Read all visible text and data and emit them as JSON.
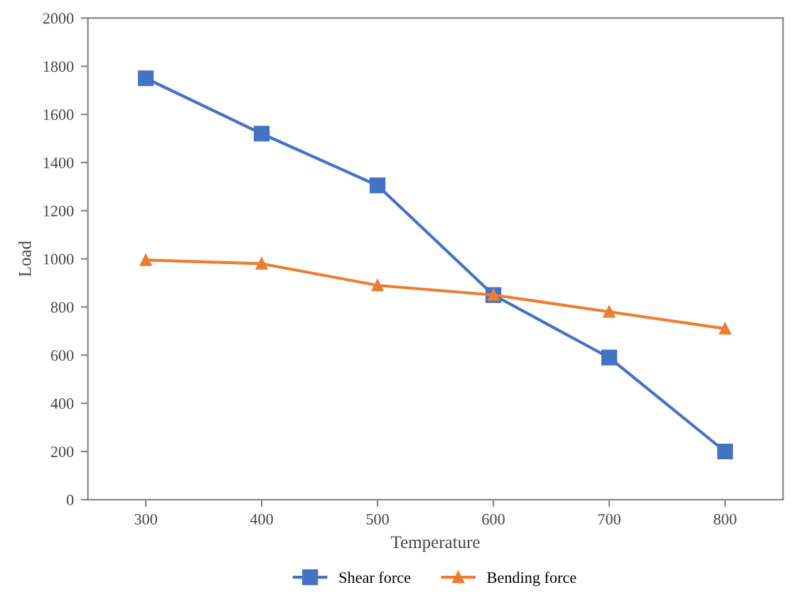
{
  "chart_data": {
    "type": "line",
    "xlabel": "Temperature",
    "ylabel": "Load",
    "x": [
      300,
      400,
      500,
      600,
      700,
      800
    ],
    "series": [
      {
        "name": "Shear force",
        "color": "#4472c4",
        "marker": "square",
        "values": [
          1750,
          1520,
          1305,
          850,
          590,
          200
        ]
      },
      {
        "name": "Bending force",
        "color": "#ed7d31",
        "marker": "triangle",
        "values": [
          995,
          980,
          890,
          850,
          780,
          710
        ]
      }
    ],
    "xlim": [
      250,
      850
    ],
    "xticks": [
      300,
      400,
      500,
      600,
      700,
      800
    ],
    "ylim": [
      0,
      2000
    ],
    "yticks": [
      0,
      200,
      400,
      600,
      800,
      1000,
      1200,
      1400,
      1600,
      1800,
      2000
    ],
    "grid": false,
    "legend": "bottom"
  }
}
